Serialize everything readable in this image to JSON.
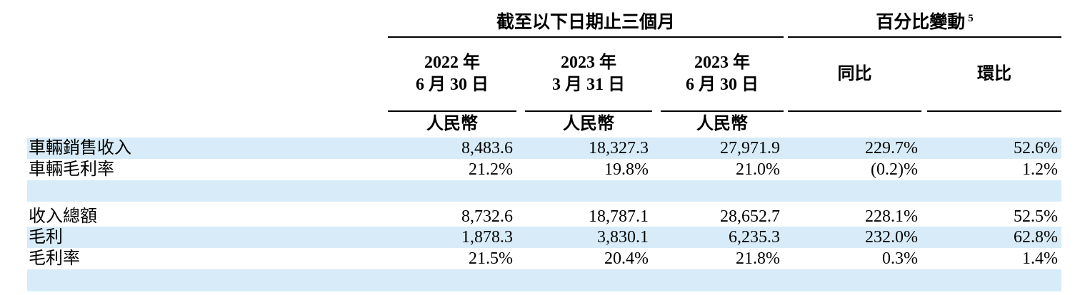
{
  "table": {
    "group_headers": {
      "period": "截至以下日期止三個月",
      "change": "百分比變動",
      "change_footnote": "5"
    },
    "date_columns": [
      {
        "year": "2022 年",
        "date": "6 月 30 日",
        "currency": "人民幣"
      },
      {
        "year": "2023 年",
        "date": "3 月 31 日",
        "currency": "人民幣"
      },
      {
        "year": "2023 年",
        "date": "6 月 30 日",
        "currency": "人民幣"
      }
    ],
    "change_columns": [
      {
        "label": "同比"
      },
      {
        "label": "環比"
      }
    ],
    "rows": [
      {
        "label": "車輛銷售收入",
        "values": [
          "8,483.6",
          "18,327.3",
          "27,971.9",
          "229.7%",
          "52.6%"
        ]
      },
      {
        "label": "車輛毛利率",
        "values": [
          "21.2%",
          "19.8%",
          "21.0%",
          "(0.2)%",
          "1.2%"
        ]
      },
      {
        "label": "收入總額",
        "values": [
          "8,732.6",
          "18,787.1",
          "28,652.7",
          "228.1%",
          "52.5%"
        ]
      },
      {
        "label": "毛利",
        "values": [
          "1,878.3",
          "3,830.1",
          "6,235.3",
          "232.0%",
          "62.8%"
        ]
      },
      {
        "label": "毛利率",
        "values": [
          "21.5%",
          "20.4%",
          "21.8%",
          "0.3%",
          "1.4%"
        ]
      }
    ]
  },
  "colors": {
    "row_highlight": "#d7ecf8",
    "rule": "#000000",
    "text": "#000000"
  },
  "chart_data": {
    "type": "table",
    "title": "截至以下日期止三個月 / 百分比變動 5",
    "columns": [
      "",
      "2022年6月30日 (人民幣)",
      "2023年3月31日 (人民幣)",
      "2023年6月30日 (人民幣)",
      "同比",
      "環比"
    ],
    "rows": [
      [
        "車輛銷售收入",
        "8,483.6",
        "18,327.3",
        "27,971.9",
        "229.7%",
        "52.6%"
      ],
      [
        "車輛毛利率",
        "21.2%",
        "19.8%",
        "21.0%",
        "(0.2)%",
        "1.2%"
      ],
      [
        "收入總額",
        "8,732.6",
        "18,787.1",
        "28,652.7",
        "228.1%",
        "52.5%"
      ],
      [
        "毛利",
        "1,878.3",
        "3,830.1",
        "6,235.3",
        "232.0%",
        "62.8%"
      ],
      [
        "毛利率",
        "21.5%",
        "20.4%",
        "21.8%",
        "0.3%",
        "1.4%"
      ]
    ]
  }
}
